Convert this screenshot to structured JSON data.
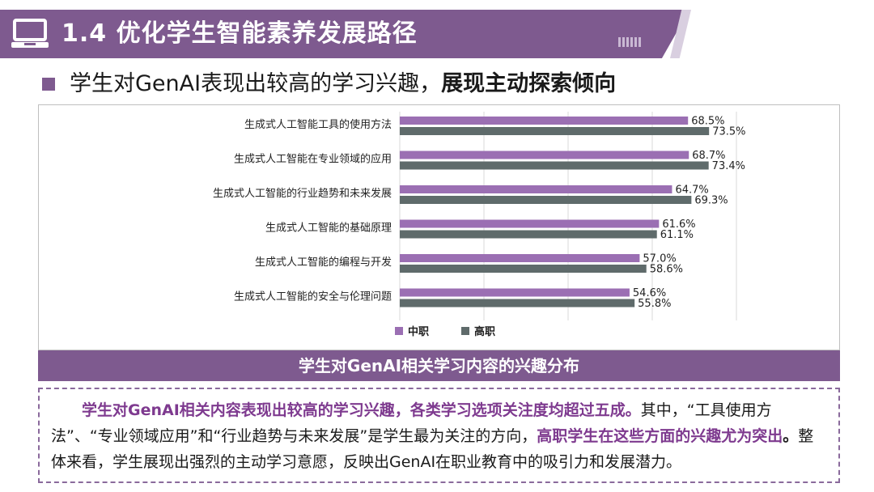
{
  "header": {
    "title": "1.4 优化学生智能素养发展路径",
    "icon": "monitor-icon",
    "accent_color": "#7e5a8f"
  },
  "subtitle": {
    "normal": "学生对GenAI表现出较高的学习兴趣，",
    "bold": "展现主动探索倾向"
  },
  "chart_data": {
    "type": "bar",
    "orientation": "horizontal",
    "categories": [
      "生成式人工智能工具的使用方法",
      "生成式人工智能在专业领域的应用",
      "生成式人工智能的行业趋势和未来发展",
      "生成式人工智能的基础原理",
      "生成式人工智能的编程与开发",
      "生成式人工智能的安全与伦理问题"
    ],
    "series": [
      {
        "name": "中职",
        "values": [
          68.5,
          68.7,
          64.7,
          61.6,
          57.0,
          54.6
        ],
        "labels": [
          "68.5%",
          "68.7%",
          "64.7%",
          "61.6%",
          "57.0%",
          "54.6%"
        ],
        "color": "#9b6fb3"
      },
      {
        "name": "高职",
        "values": [
          73.5,
          73.4,
          69.3,
          61.1,
          58.6,
          55.8
        ],
        "labels": [
          "73.5%",
          "73.4%",
          "69.3%",
          "61.1%",
          "58.6%",
          "55.8%"
        ],
        "color": "#5f6b6b"
      }
    ],
    "xlim": [
      0,
      80
    ],
    "grid": true,
    "legend": "bottom-center"
  },
  "caption": "学生对GenAI相关学习内容的兴趣分布",
  "summary": {
    "part1_highlight": "学生对GenAI相关内容表现出较高的学习兴趣，各类学习选项关注度均超过五成。",
    "part2": "其中，“工具使用方法”、“专业领域应用”和“行业趋势与未来发展”是学生最为关注的方向，",
    "part3_highlight": "高职学生在这些方面的兴趣尤为突出",
    "part4_bold": "。",
    "part5": "整体来看，学生展现出强烈的主动学习意愿，反映出GenAI在职业教育中的吸引力和发展潜力。"
  }
}
